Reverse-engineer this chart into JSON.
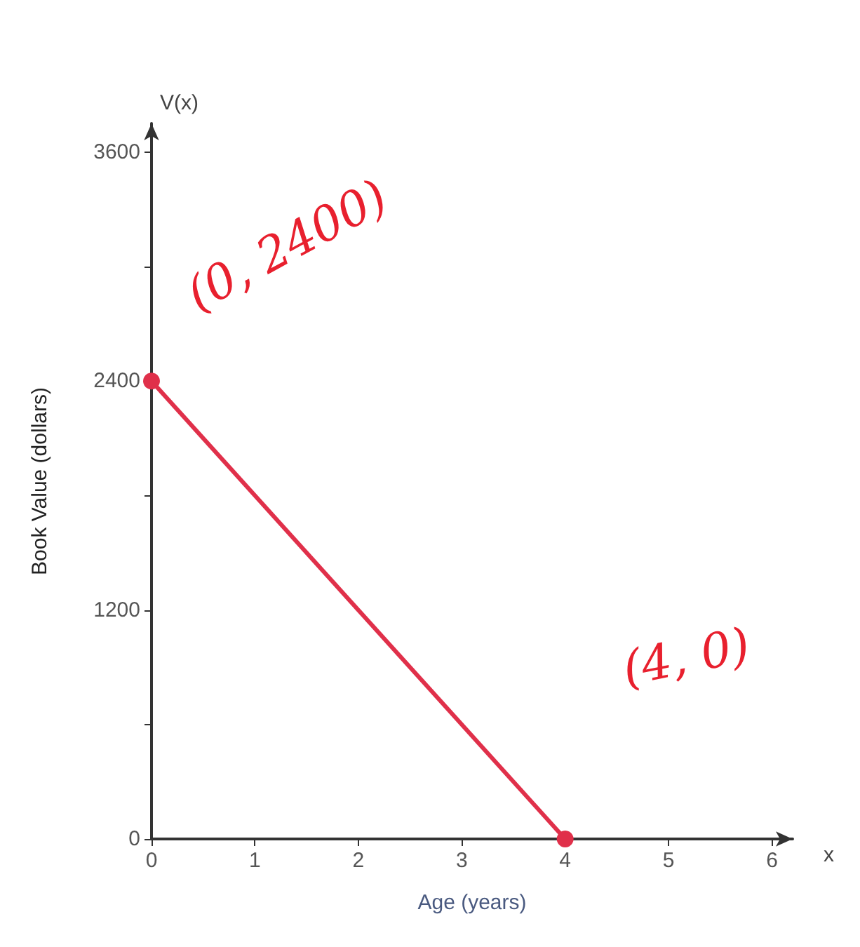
{
  "chart_data": {
    "type": "line",
    "xlabel": "Age (years)",
    "ylabel": "Book Value (dollars)",
    "x": [
      0,
      4
    ],
    "series": [
      {
        "color": "#e0304a",
        "values": [
          2400,
          0
        ]
      }
    ],
    "xlim": [
      0,
      6.2
    ],
    "xticks": [
      0,
      1,
      2,
      3,
      4,
      5,
      6
    ],
    "ylim": [
      0,
      3750
    ],
    "yticks": [
      0,
      {
        "value": 600,
        "label": null
      },
      1200,
      {
        "value": 1800,
        "label": null
      },
      2400,
      {
        "value": 3000,
        "label": null
      },
      3600
    ],
    "grid": false,
    "marker": "circle",
    "line_style": "solid",
    "annotations": [
      "V(x)",
      "x",
      "(0, 2400)",
      "(4, 0)"
    ]
  }
}
